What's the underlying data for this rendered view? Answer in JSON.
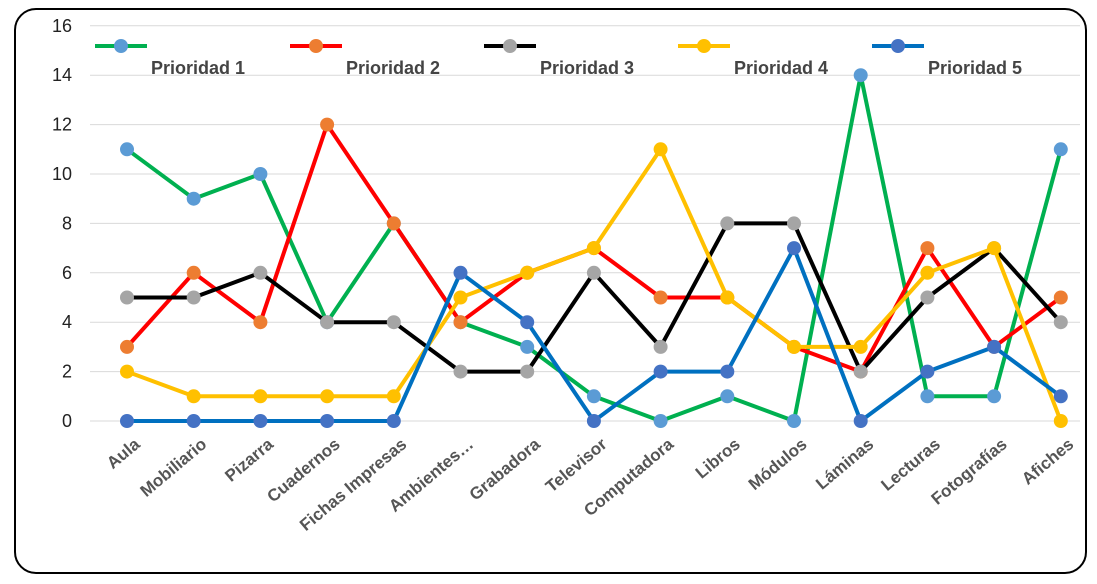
{
  "chart_data": {
    "type": "line",
    "title": "",
    "xlabel": "",
    "ylabel": "",
    "ylim": [
      0,
      16
    ],
    "yticks": [
      0,
      2,
      4,
      6,
      8,
      10,
      12,
      14,
      16
    ],
    "grid": true,
    "legend_position": "top",
    "categories": [
      "Aula",
      "Mobiliario",
      "Pizarra",
      "Cuadernos",
      "Fichas Impresas",
      "Ambientes…",
      "Grabadora",
      "Televisor",
      "Computadora",
      "Libros",
      "Módulos",
      "Láminas",
      "Lecturas",
      "Fotografías",
      "Afiches"
    ],
    "series": [
      {
        "name": "Prioridad 1",
        "line_color": "#00b050",
        "marker_color": "#5b9bd5",
        "values": [
          11,
          9,
          10,
          4,
          8,
          4,
          3,
          1,
          0,
          1,
          0,
          14,
          1,
          1,
          11
        ]
      },
      {
        "name": "Prioridad 2",
        "line_color": "#ff0000",
        "marker_color": "#ed7d31",
        "values": [
          3,
          6,
          4,
          12,
          8,
          4,
          6,
          7,
          5,
          5,
          3,
          2,
          7,
          3,
          5
        ]
      },
      {
        "name": "Prioridad 3",
        "line_color": "#000000",
        "marker_color": "#a5a5a5",
        "values": [
          5,
          5,
          6,
          4,
          4,
          2,
          2,
          6,
          3,
          8,
          8,
          2,
          5,
          7,
          4
        ]
      },
      {
        "name": "Prioridad 4",
        "line_color": "#ffc000",
        "marker_color": "#ffc000",
        "values": [
          2,
          1,
          1,
          1,
          1,
          5,
          6,
          7,
          11,
          5,
          3,
          3,
          6,
          7,
          0
        ]
      },
      {
        "name": "Prioridad 5",
        "line_color": "#0070c0",
        "marker_color": "#4472c4",
        "values": [
          0,
          0,
          0,
          0,
          0,
          6,
          4,
          0,
          2,
          2,
          7,
          0,
          2,
          3,
          1
        ]
      }
    ]
  }
}
